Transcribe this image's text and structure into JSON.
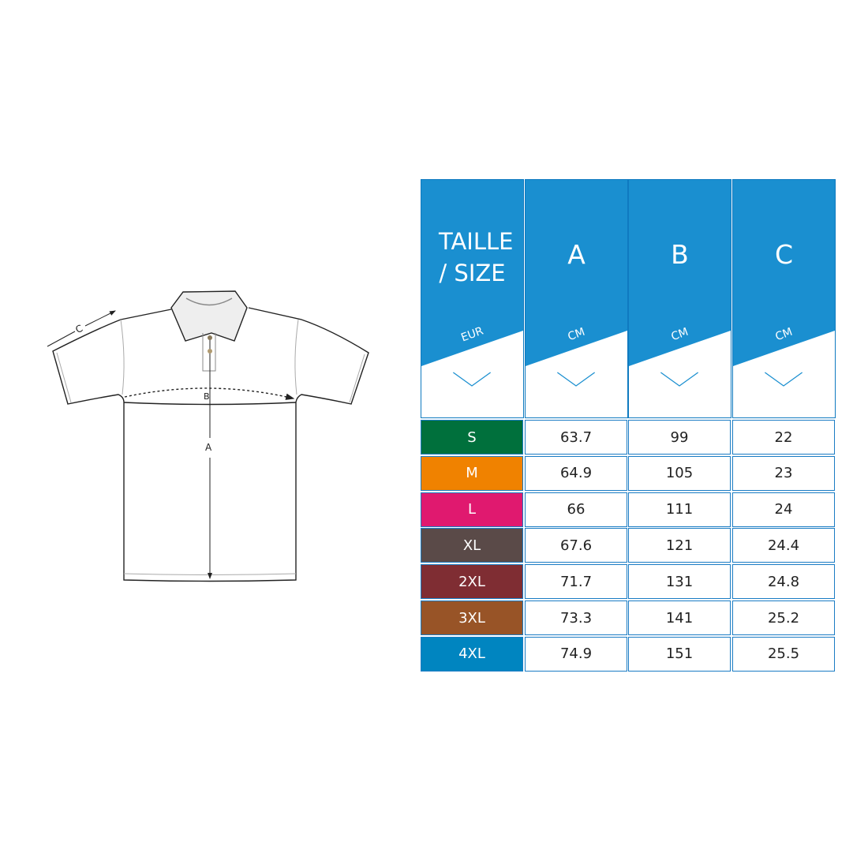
{
  "diagram": {
    "labels": {
      "a": "A",
      "b": "B",
      "c": "C"
    }
  },
  "table": {
    "header_color": "#1a8fd0",
    "columns": [
      {
        "title": "TAILLE / SIZE",
        "unit": "EUR"
      },
      {
        "title": "A",
        "unit": "CM"
      },
      {
        "title": "B",
        "unit": "CM"
      },
      {
        "title": "C",
        "unit": "CM"
      }
    ],
    "rows": [
      {
        "size": "S",
        "color": "#00703c",
        "a": "63.7",
        "b": "99",
        "c": "22"
      },
      {
        "size": "M",
        "color": "#f08200",
        "a": "64.9",
        "b": "105",
        "c": "23"
      },
      {
        "size": "L",
        "color": "#e0196f",
        "a": "66",
        "b": "111",
        "c": "24"
      },
      {
        "size": "XL",
        "color": "#5a4a48",
        "a": "67.6",
        "b": "121",
        "c": "24.4"
      },
      {
        "size": "2XL",
        "color": "#7f2d33",
        "a": "71.7",
        "b": "131",
        "c": "24.8"
      },
      {
        "size": "3XL",
        "color": "#985427",
        "a": "73.3",
        "b": "141",
        "c": "25.2"
      },
      {
        "size": "4XL",
        "color": "#0085c0",
        "a": "74.9",
        "b": "151",
        "c": "25.5"
      }
    ]
  }
}
